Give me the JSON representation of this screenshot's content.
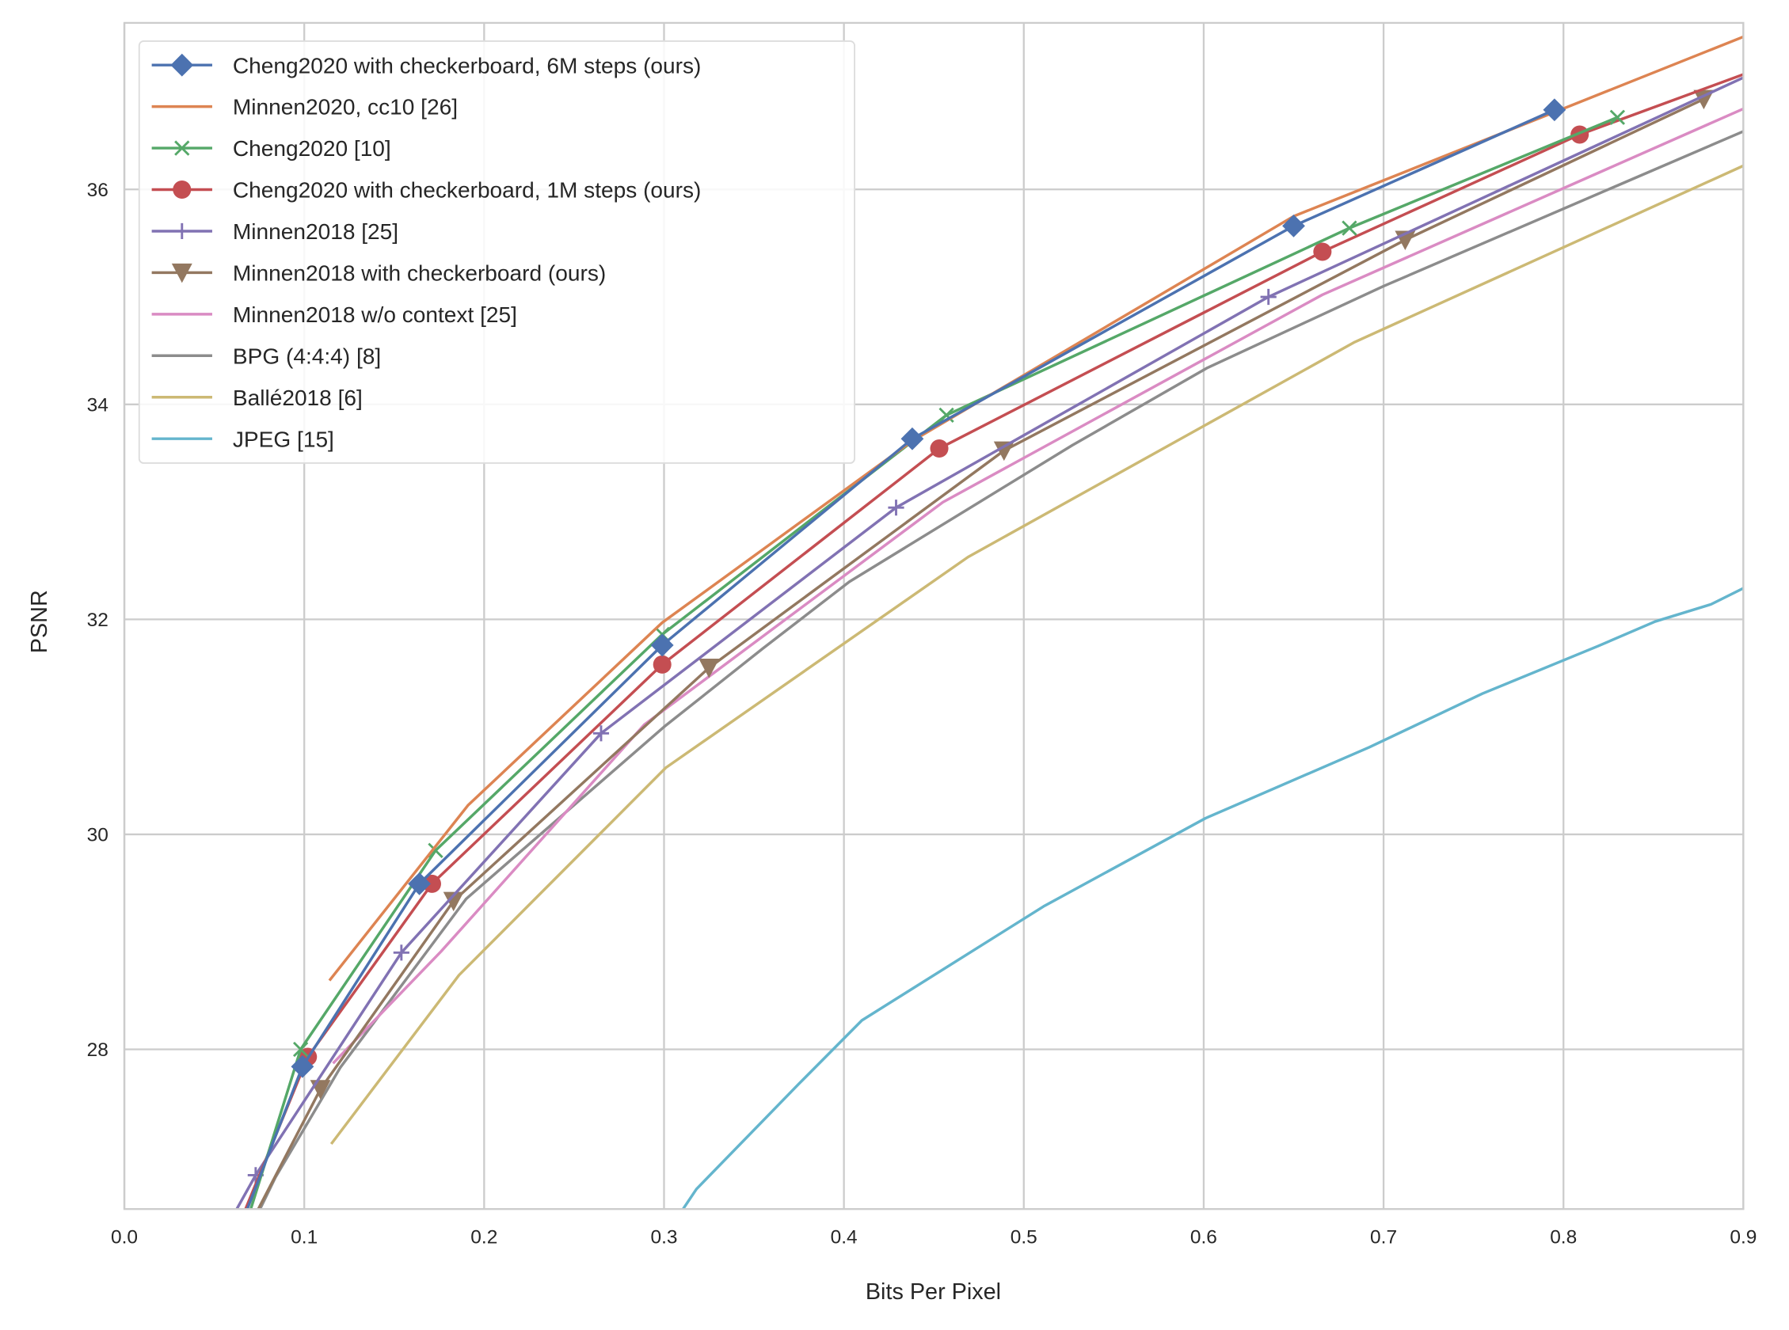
{
  "chart_data": {
    "type": "line",
    "title": "",
    "xlabel": "Bits Per Pixel",
    "ylabel": "PSNR",
    "xlim": [
      0.0,
      0.9
    ],
    "ylim": [
      26.5,
      37.55
    ],
    "xticks": [
      "0.0",
      "0.1",
      "0.2",
      "0.3",
      "0.4",
      "0.5",
      "0.6",
      "0.7",
      "0.8",
      "0.9"
    ],
    "xtick_values": [
      0,
      0.1,
      0.2,
      0.3,
      0.4,
      0.5,
      0.6,
      0.7,
      0.8,
      0.9
    ],
    "yticks": [
      "28",
      "30",
      "32",
      "34",
      "36"
    ],
    "ytick_values": [
      28,
      30,
      32,
      34,
      36
    ],
    "grid": true,
    "legend_placement": "top-left",
    "series": [
      {
        "name": "Cheng2020 with checkerboard, 6M steps (ours)",
        "color": "#4c72b0",
        "marker": "diamond",
        "points": [
          [
            0.068,
            26.5
          ],
          [
            0.099,
            27.84
          ],
          [
            0.164,
            29.54
          ],
          [
            0.299,
            31.76
          ],
          [
            0.438,
            33.68
          ],
          [
            0.65,
            35.66
          ],
          [
            0.795,
            36.74
          ]
        ],
        "marked": [
          1,
          2,
          3,
          4,
          5,
          6
        ]
      },
      {
        "name": "Minnen2020, cc10 [26]",
        "color": "#dd8452",
        "marker": "none",
        "points": [
          [
            0.114,
            28.64
          ],
          [
            0.191,
            30.27
          ],
          [
            0.299,
            31.97
          ],
          [
            0.438,
            33.66
          ],
          [
            0.65,
            35.75
          ],
          [
            0.9,
            37.42
          ]
        ],
        "marked": []
      },
      {
        "name": "Cheng2020 [10]",
        "color": "#55a868",
        "marker": "x",
        "points": [
          [
            0.07,
            26.5
          ],
          [
            0.098,
            28.0
          ],
          [
            0.173,
            29.85
          ],
          [
            0.299,
            31.86
          ],
          [
            0.457,
            33.9
          ],
          [
            0.681,
            35.64
          ],
          [
            0.83,
            36.67
          ]
        ],
        "marked": [
          1,
          2,
          3,
          4,
          5,
          6
        ]
      },
      {
        "name": "Cheng2020 with checkerboard, 1M steps (ours)",
        "color": "#c44e52",
        "marker": "circle",
        "points": [
          [
            0.067,
            26.5
          ],
          [
            0.102,
            27.93
          ],
          [
            0.171,
            29.54
          ],
          [
            0.299,
            31.58
          ],
          [
            0.453,
            33.59
          ],
          [
            0.666,
            35.42
          ],
          [
            0.809,
            36.51
          ],
          [
            0.9,
            37.07
          ]
        ],
        "marked": [
          1,
          2,
          3,
          4,
          5,
          6
        ]
      },
      {
        "name": "Minnen2018 [25]",
        "color": "#8172b3",
        "marker": "plus",
        "points": [
          [
            0.062,
            26.5
          ],
          [
            0.073,
            26.83
          ],
          [
            0.154,
            28.9
          ],
          [
            0.265,
            30.94
          ],
          [
            0.429,
            33.04
          ],
          [
            0.636,
            35.0
          ],
          [
            0.9,
            37.04
          ]
        ],
        "marked": [
          1,
          2,
          3,
          4,
          5
        ]
      },
      {
        "name": "Minnen2018 with checkerboard (ours)",
        "color": "#937860",
        "marker": "triangle-down",
        "points": [
          [
            0.074,
            26.5
          ],
          [
            0.109,
            27.63
          ],
          [
            0.183,
            29.38
          ],
          [
            0.325,
            31.55
          ],
          [
            0.489,
            33.57
          ],
          [
            0.712,
            35.53
          ],
          [
            0.878,
            36.84
          ]
        ],
        "marked": [
          1,
          2,
          3,
          4,
          5,
          6
        ]
      },
      {
        "name": "Minnen2018 w/o context [25]",
        "color": "#da8bc3",
        "marker": "none",
        "points": [
          [
            0.116,
            27.87
          ],
          [
            0.176,
            28.91
          ],
          [
            0.289,
            31.02
          ],
          [
            0.455,
            33.09
          ],
          [
            0.666,
            35.02
          ],
          [
            0.9,
            36.75
          ]
        ],
        "marked": []
      },
      {
        "name": "BPG (4:4:4) [8]",
        "color": "#8c8c8c",
        "marker": "none",
        "points": [
          [
            0.075,
            26.5
          ],
          [
            0.084,
            26.81
          ],
          [
            0.12,
            27.83
          ],
          [
            0.19,
            29.4
          ],
          [
            0.3,
            31.0
          ],
          [
            0.355,
            31.73
          ],
          [
            0.403,
            32.35
          ],
          [
            0.527,
            33.62
          ],
          [
            0.602,
            34.34
          ],
          [
            0.7,
            35.1
          ],
          [
            0.9,
            36.54
          ]
        ],
        "marked": []
      },
      {
        "name": "Ballé2018 [6]",
        "color": "#ccb974",
        "marker": "none",
        "points": [
          [
            0.115,
            27.12
          ],
          [
            0.186,
            28.69
          ],
          [
            0.301,
            30.62
          ],
          [
            0.469,
            32.58
          ],
          [
            0.684,
            34.58
          ],
          [
            0.9,
            36.22
          ]
        ],
        "marked": []
      },
      {
        "name": "JPEG [15]",
        "color": "#64b5cd",
        "marker": "none",
        "points": [
          [
            0.31,
            26.5
          ],
          [
            0.318,
            26.7
          ],
          [
            0.375,
            27.68
          ],
          [
            0.41,
            28.27
          ],
          [
            0.511,
            29.33
          ],
          [
            0.601,
            30.15
          ],
          [
            0.692,
            30.81
          ],
          [
            0.755,
            31.31
          ],
          [
            0.819,
            31.75
          ],
          [
            0.851,
            31.98
          ],
          [
            0.882,
            32.14
          ],
          [
            0.9,
            32.29
          ]
        ],
        "marked": []
      }
    ]
  }
}
